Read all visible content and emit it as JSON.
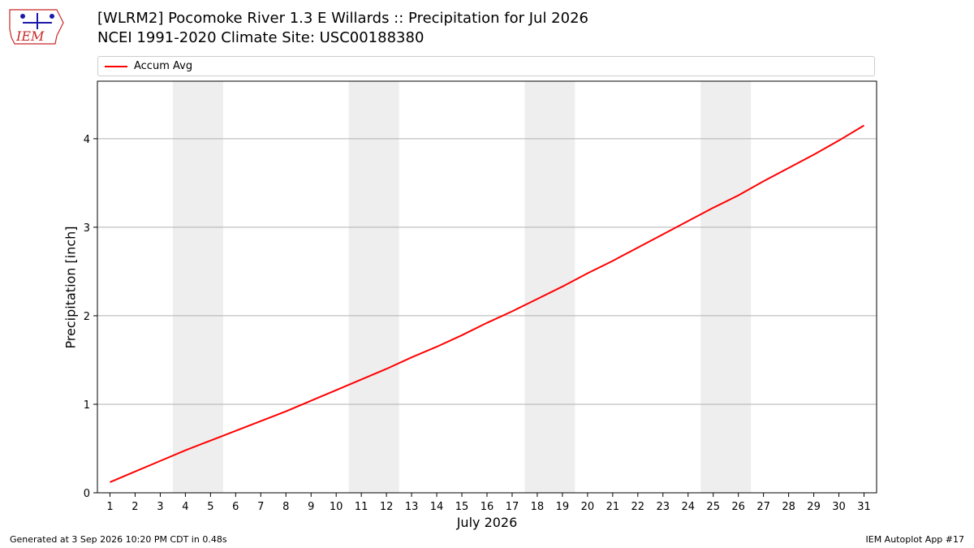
{
  "logo": {
    "text": "IEM",
    "icon": "iem-iowa-logo"
  },
  "title": {
    "line1": "[WLRM2] Pocomoke River 1.3 E Willards :: Precipitation for Jul 2026",
    "line2": "NCEI 1991-2020 Climate Site: USC00188380"
  },
  "footer": {
    "left": "Generated at 3 Sep 2026 10:20 PM CDT in 0.48s",
    "right": "IEM Autoplot App #17"
  },
  "colors": {
    "line": "#ff0000",
    "weekend_band": "#eeeeee",
    "grid": "#b0b0b0"
  },
  "chart_data": {
    "type": "line",
    "xlabel": "July 2026",
    "ylabel": "Precipitation [inch]",
    "legend": {
      "placement": "top",
      "entries": [
        "Accum Avg"
      ]
    },
    "grid": {
      "y": true,
      "x": false
    },
    "ylim": [
      0,
      4.65
    ],
    "xlim": [
      0.5,
      31.5
    ],
    "yticks": [
      0,
      1,
      2,
      3,
      4
    ],
    "x": [
      1,
      2,
      3,
      4,
      5,
      6,
      7,
      8,
      9,
      10,
      11,
      12,
      13,
      14,
      15,
      16,
      17,
      18,
      19,
      20,
      21,
      22,
      23,
      24,
      25,
      26,
      27,
      28,
      29,
      30,
      31
    ],
    "series": [
      {
        "name": "Accum Avg",
        "values": [
          0.12,
          0.24,
          0.36,
          0.48,
          0.59,
          0.7,
          0.81,
          0.92,
          1.04,
          1.16,
          1.28,
          1.4,
          1.53,
          1.65,
          1.78,
          1.92,
          2.05,
          2.19,
          2.33,
          2.48,
          2.62,
          2.77,
          2.92,
          3.07,
          3.22,
          3.36,
          3.52,
          3.67,
          3.82,
          3.98,
          4.15
        ]
      }
    ],
    "shaded_day_ranges": [
      [
        4,
        5
      ],
      [
        11,
        12
      ],
      [
        18,
        19
      ],
      [
        25,
        26
      ]
    ]
  }
}
